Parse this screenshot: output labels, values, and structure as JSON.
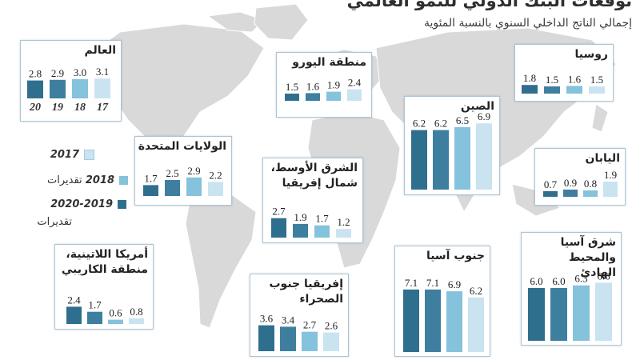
{
  "title": "توقعات البنك الدولي للنمو العالمي",
  "subtitle": "إجمالي الناتج الداخلي السنوي بالنسبة المئوية",
  "colors": {
    "year_2017": "#c9e3f1",
    "year_2018": "#85c2dc",
    "year_2019_2020": "#2f6f8e",
    "year_2020": "#3e7fa0"
  },
  "legend": {
    "items": [
      {
        "year": "2017",
        "suffix": ""
      },
      {
        "year": "2018",
        "suffix": "تقديرات"
      },
      {
        "year": "2020-2019",
        "suffix": "تقديرات"
      }
    ]
  },
  "chart_data": [
    {
      "type": "bar",
      "id": "world",
      "title": "العالم",
      "categories": [
        "20",
        "19",
        "18",
        "17"
      ],
      "values": [
        2.8,
        2.9,
        3.0,
        3.1
      ],
      "show_year_labels": true
    },
    {
      "type": "bar",
      "id": "eurozone",
      "title": "منطقة اليورو",
      "categories": [
        "2020",
        "2019",
        "2018",
        "2017"
      ],
      "values": [
        1.5,
        1.6,
        1.9,
        2.4
      ]
    },
    {
      "type": "bar",
      "id": "russia",
      "title": "روسيا",
      "categories": [
        "2020",
        "2019",
        "2018",
        "2017"
      ],
      "values": [
        1.8,
        1.5,
        1.6,
        1.5
      ]
    },
    {
      "type": "bar",
      "id": "china",
      "title": "الصين",
      "categories": [
        "2020",
        "2019",
        "2018",
        "2017"
      ],
      "values": [
        6.2,
        6.2,
        6.5,
        6.9
      ]
    },
    {
      "type": "bar",
      "id": "usa",
      "title": "الولايات المتحدة",
      "categories": [
        "2020",
        "2019",
        "2018",
        "2017"
      ],
      "values": [
        1.7,
        2.5,
        2.9,
        2.2
      ]
    },
    {
      "type": "bar",
      "id": "mena",
      "title": "الشرق الأوسط، شمال إفريقيا",
      "categories": [
        "2020",
        "2019",
        "2018",
        "2017"
      ],
      "values": [
        2.7,
        1.9,
        1.7,
        1.2
      ]
    },
    {
      "type": "bar",
      "id": "japan",
      "title": "اليابان",
      "categories": [
        "2020",
        "2019",
        "2018",
        "2017"
      ],
      "values": [
        0.7,
        0.9,
        0.8,
        1.9
      ]
    },
    {
      "type": "bar",
      "id": "latam",
      "title": "أمريكا اللاتينية، منطقة الكاريبي",
      "categories": [
        "2020",
        "2019",
        "2018",
        "2017"
      ],
      "values": [
        2.4,
        1.7,
        0.6,
        0.8
      ]
    },
    {
      "type": "bar",
      "id": "ssa",
      "title": "إفريقيا جنوب الصحراء",
      "categories": [
        "2020",
        "2019",
        "2018",
        "2017"
      ],
      "values": [
        3.6,
        3.4,
        2.7,
        2.6
      ]
    },
    {
      "type": "bar",
      "id": "south_asia",
      "title": "جنوب آسيا",
      "categories": [
        "2020",
        "2019",
        "2018",
        "2017"
      ],
      "values": [
        7.1,
        7.1,
        6.9,
        6.2
      ]
    },
    {
      "type": "bar",
      "id": "east_asia",
      "title": "شرق آسيا والمحيط الهادئ",
      "categories": [
        "2020",
        "2019",
        "2018",
        "2017"
      ],
      "values": [
        6.0,
        6.0,
        6.3,
        6.6
      ]
    }
  ]
}
